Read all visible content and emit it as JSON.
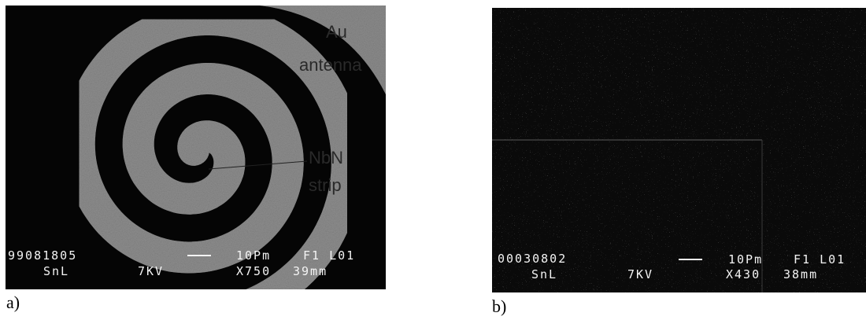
{
  "panels": [
    {
      "label": "a)",
      "annotations": [
        "Au",
        "antenna",
        "NbN",
        "strip"
      ],
      "info": {
        "id": "99081805",
        "scale": "10Pm",
        "field": "F1 L01",
        "operator": "SnL",
        "voltage": "7KV",
        "magnification": "X750",
        "distance": "39mm"
      }
    },
    {
      "label": "b)",
      "info": {
        "id": "00030802",
        "scale": "10Pm",
        "field": "F1 L01",
        "operator": "SnL",
        "voltage": "7KV",
        "magnification": "X430",
        "distance": "38mm"
      }
    }
  ]
}
